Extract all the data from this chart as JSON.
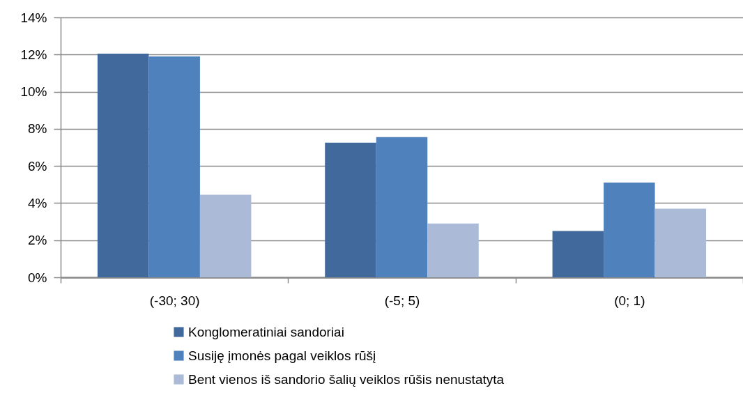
{
  "chart_data": {
    "type": "bar",
    "categories": [
      "(-30; 30)",
      "(-5; 5)",
      "(0; 1)"
    ],
    "series": [
      {
        "name": "Konglomeratiniai sandoriai",
        "color": "#41699b",
        "values": [
          12.05,
          7.25,
          2.5
        ]
      },
      {
        "name": "Susiję įmonės pagal veiklos rūšį",
        "color": "#4f81bd",
        "values": [
          11.9,
          7.55,
          5.1
        ]
      },
      {
        "name": "Bent vienos iš sandorio šalių veiklos rūšis nenustatyta",
        "color": "#aabad7",
        "values": [
          4.45,
          2.9,
          3.7
        ]
      }
    ],
    "ylim": [
      0,
      14
    ],
    "yticks": [
      {
        "value": 0,
        "label": "0%"
      },
      {
        "value": 2,
        "label": "2%"
      },
      {
        "value": 4,
        "label": "4%"
      },
      {
        "value": 6,
        "label": "6%"
      },
      {
        "value": 8,
        "label": "8%"
      },
      {
        "value": 10,
        "label": "10%"
      },
      {
        "value": 12,
        "label": "12%"
      },
      {
        "value": 14,
        "label": "14%"
      }
    ],
    "grid": "y",
    "legend": "bottom"
  }
}
